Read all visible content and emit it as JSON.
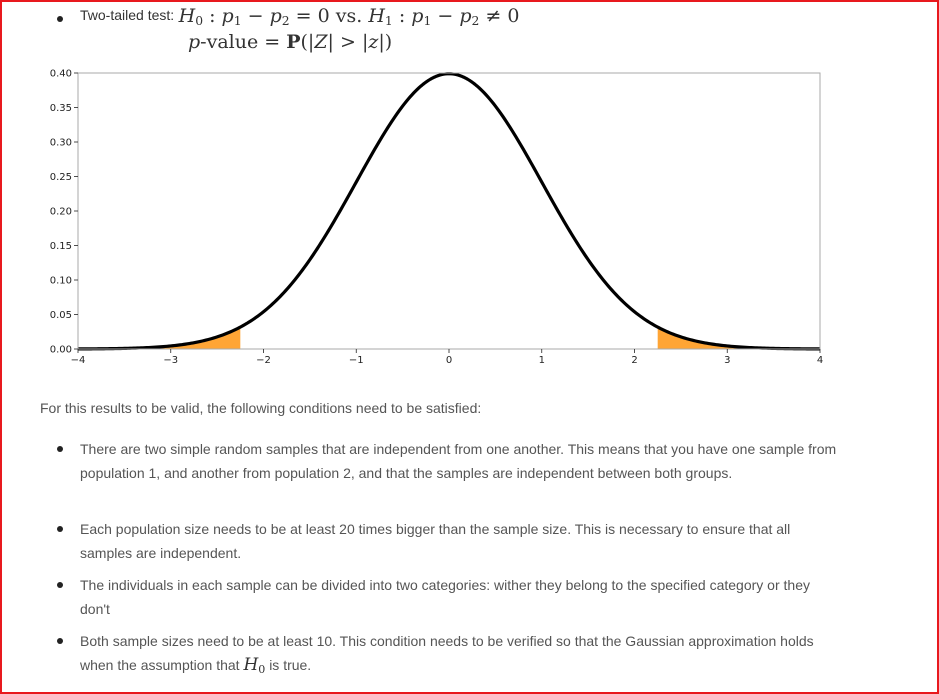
{
  "header": {
    "lead_text": "Two-tailed test:",
    "h0_label": "H",
    "h0_sub": "0",
    "p_symbol": "p",
    "sub_1": "1",
    "sub_2": "2",
    "minus": "−",
    "eq_zero": "= 0",
    "vs": "vs.",
    "h1_label": "H",
    "h1_sub": "1",
    "neq_zero": "≠ 0",
    "pvalue_p": "p",
    "pvalue_rest": "-value =",
    "prob_symbol": "P",
    "prob_open": "(|",
    "z_upper": "Z",
    "gt": "| > |",
    "z_lower": "z",
    "prob_close": "|)"
  },
  "chart_data": {
    "type": "area",
    "distribution": "standard normal",
    "xlim": [
      -4,
      4
    ],
    "ylim": [
      0,
      0.4
    ],
    "x_ticks": [
      -4,
      -3,
      -2,
      -1,
      0,
      1,
      2,
      3,
      4
    ],
    "x_tick_labels": [
      "−4",
      "−3",
      "−2",
      "−1",
      "0",
      "1",
      "2",
      "3",
      "4"
    ],
    "y_ticks": [
      0.0,
      0.05,
      0.1,
      0.15,
      0.2,
      0.25,
      0.3,
      0.35,
      0.4
    ],
    "y_tick_labels": [
      "0.00",
      "0.05",
      "0.10",
      "0.15",
      "0.20",
      "0.25",
      "0.30",
      "0.35",
      "0.40"
    ],
    "shaded_regions": [
      [
        -4,
        -2.25
      ],
      [
        2.25,
        4
      ]
    ],
    "curve_color": "#000000",
    "fill_color": "#ffa535",
    "grid": false
  },
  "body": {
    "intro": "For this results to be valid, the following conditions need to be satisfied:",
    "conditions": [
      "There are two simple random samples that are independent from one another. This means that you have one sample from population 1, and another from population 2, and that the samples are independent between both groups.",
      "Each population size needs to be at least 20 times bigger than the sample size. This is necessary to ensure that all samples are independent.",
      "The individuals in each sample can be divided into two categories: wither they belong to the specified category or they don't"
    ],
    "last_condition": {
      "text_before": "Both sample sizes need to be at least 10. This condition needs to be verified so that the Gaussian approximation holds when the assumption that",
      "h0_label": "H",
      "h0_sub": "0",
      "text_after": "is true."
    }
  }
}
